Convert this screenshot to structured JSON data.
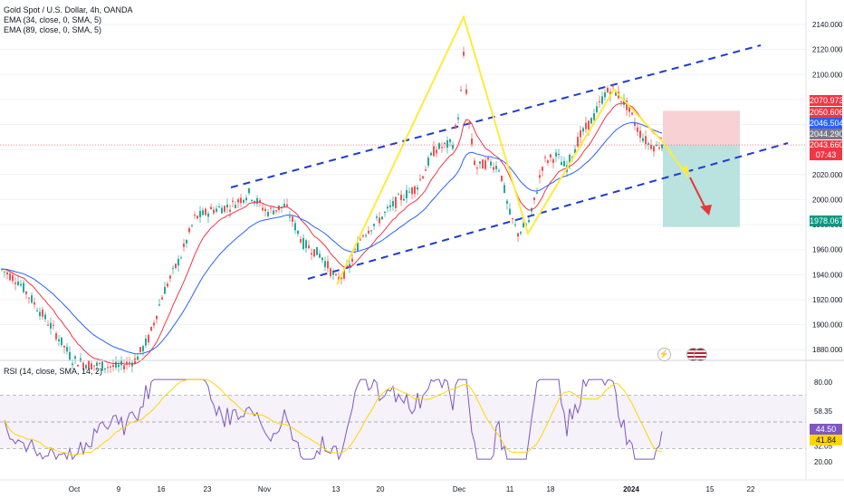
{
  "legend": {
    "title": "Gold Spot / U.S. Dollar, 4h, OANDA",
    "ema1": "EMA (34, close, 0, SMA, 5)",
    "ema2": "EMA (89, close, 0, SMA, 5)",
    "rsi": "RSI (14, close, SMA, 14, 2)"
  },
  "colors": {
    "ema_fast": "#f23645",
    "ema_slow": "#2962ff",
    "channel": "#1f3ccf",
    "pattern": "#ffeb3b",
    "rsi_line": "#7e57c2",
    "rsi_ma": "#ffd600",
    "up": "#26a69a",
    "down": "#ef5350",
    "stop_zone": "#f7c9cd",
    "target_zone": "#b2dfdb"
  },
  "price_axis": {
    "ticks": [
      "2140.000",
      "2120.000",
      "2100.000",
      "2080.000",
      "2060.000",
      "2040.000",
      "2020.000",
      "2000.000",
      "1980.000",
      "1960.000",
      "1940.000",
      "1920.000",
      "1900.000",
      "1880.000"
    ],
    "tags": {
      "t1": "2070.973",
      "t2": "2050.606",
      "t3": "2046.504",
      "t4": "2044.290",
      "t5": "2043.660",
      "t5_timer": "07:43",
      "t6": "1978.067"
    }
  },
  "rsi_axis": {
    "ticks": [
      "80.00",
      "58.35",
      "44.50",
      "41.84",
      "32.05",
      "20.00"
    ]
  },
  "time_axis": [
    "Oct",
    "9",
    "16",
    "23",
    "Nov",
    "13",
    "20",
    "Dec",
    "11",
    "18",
    "2024",
    "15",
    "22"
  ],
  "icons": [
    "lightning-icon",
    "us-flag-icon",
    "us-flag-icon"
  ],
  "chart_data": {
    "type": "candlestick",
    "symbol": "Gold Spot / U.S. Dollar",
    "timeframe": "4h",
    "ylim": [
      1868,
      2150
    ],
    "current_price": 2043.66,
    "ema_fast_last": 2050.606,
    "ema_slow_last": 2046.504,
    "swing_points": [
      {
        "label": "low",
        "price": 1932
      },
      {
        "label": "peak",
        "price": 2146
      },
      {
        "label": "low",
        "price": 1973
      },
      {
        "label": "high",
        "price": 2088
      }
    ],
    "trade_setup": {
      "entry": 2043.66,
      "stop": 2070.973,
      "target": 1978.067
    },
    "rsi": {
      "length": 14,
      "last": 44.5,
      "ma": 41.84,
      "levels": [
        70,
        50,
        30
      ]
    }
  }
}
